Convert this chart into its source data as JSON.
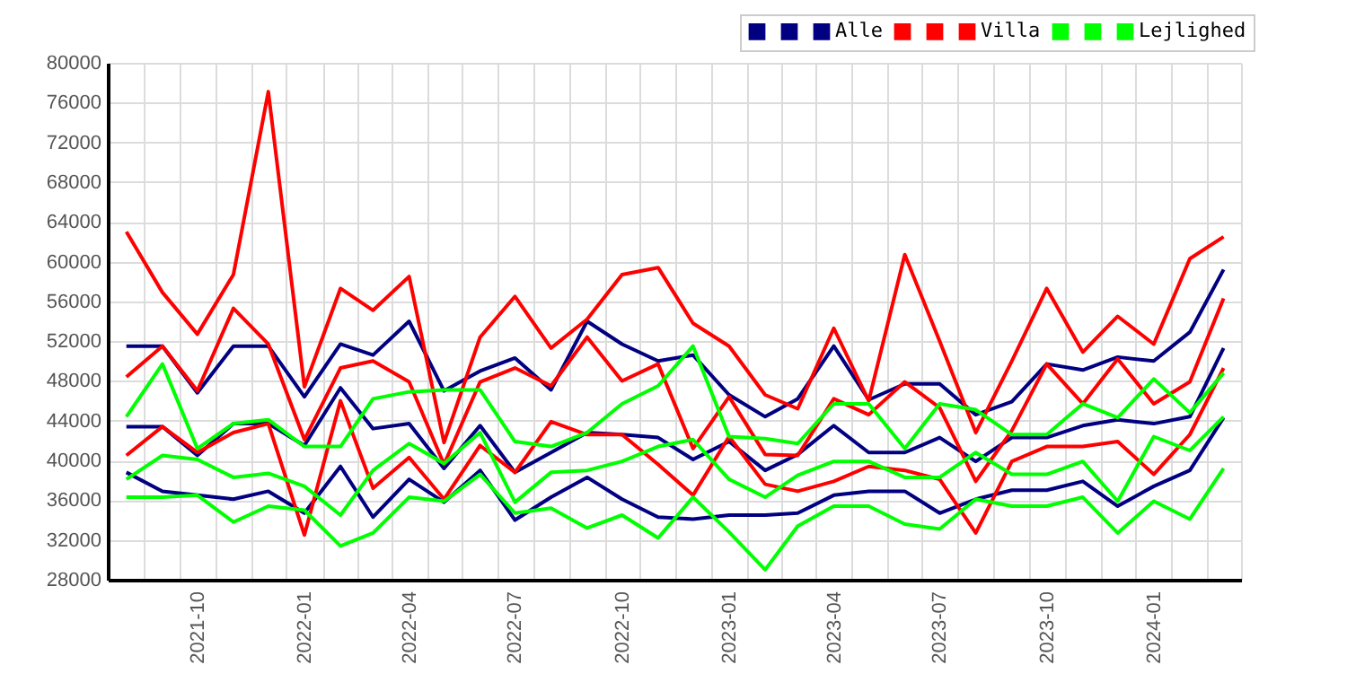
{
  "chart_data": {
    "type": "line",
    "x": [
      "2021-08",
      "2021-09",
      "2021-10",
      "2021-11",
      "2021-12",
      "2022-01",
      "2022-02",
      "2022-03",
      "2022-04",
      "2022-05",
      "2022-06",
      "2022-07",
      "2022-08",
      "2022-09",
      "2022-10",
      "2022-11",
      "2022-12",
      "2023-01",
      "2023-02",
      "2023-03",
      "2023-04",
      "2023-05",
      "2023-06",
      "2023-07",
      "2023-08",
      "2023-09",
      "2023-10",
      "2023-11",
      "2023-12",
      "2024-01",
      "2024-02",
      "2024-03"
    ],
    "series": [
      {
        "color": "#000080",
        "values": [
          51500,
          51500,
          46800,
          51500,
          51500,
          46400,
          51700,
          50600,
          54000,
          47000,
          49000,
          50300,
          47100,
          54000,
          51700,
          50000,
          50600,
          46600,
          44400,
          46200,
          51500,
          46100,
          47700,
          47700,
          44600,
          45900,
          49700,
          49100,
          50400,
          50000,
          52900,
          59200
        ]
      },
      {
        "color": "#000080",
        "values": [
          38800,
          36900,
          36500,
          36100,
          36900,
          34700,
          39400,
          34300,
          38100,
          35800,
          39000,
          34000,
          36300,
          38300,
          36100,
          34300,
          34100,
          34500,
          34500,
          34700,
          36500,
          36900,
          36900,
          34700,
          36100,
          37000,
          37000,
          37900,
          35400,
          37400,
          39000,
          44300
        ]
      },
      {
        "name": "Alle",
        "color": "#000080",
        "values": [
          43400,
          43400,
          40500,
          43700,
          43700,
          41500,
          47300,
          43200,
          43700,
          39200,
          43500,
          38800,
          40800,
          42800,
          42600,
          42300,
          40100,
          41900,
          39000,
          40600,
          43500,
          40800,
          40800,
          42300,
          39900,
          42300,
          42300,
          43500,
          44100,
          43700,
          44400,
          51300
        ]
      },
      {
        "color": "#ff0000",
        "values": [
          63000,
          56900,
          52700,
          58700,
          77100,
          47400,
          57300,
          55100,
          58500,
          41800,
          52400,
          56500,
          51300,
          54200,
          58700,
          59400,
          53800,
          51500,
          46600,
          45200,
          53300,
          46000,
          60700,
          52000,
          42800,
          50000,
          57300,
          50900,
          54500,
          51700,
          60300,
          62500
        ]
      },
      {
        "color": "#ff0000",
        "values": [
          40500,
          43400,
          40800,
          42800,
          43700,
          32500,
          46000,
          37200,
          40300,
          36100,
          41500,
          38800,
          43900,
          42600,
          42600,
          39600,
          36500,
          42400,
          37600,
          36900,
          37900,
          39400,
          39000,
          38100,
          32700,
          39900,
          41400,
          41400,
          41900,
          38600,
          42600,
          49300
        ]
      },
      {
        "name": "Villa",
        "color": "#ff0000",
        "values": [
          48400,
          51500,
          47000,
          55300,
          51700,
          42100,
          49300,
          50000,
          47900,
          39600,
          47900,
          49300,
          47500,
          52400,
          48000,
          49700,
          41200,
          46400,
          40600,
          40500,
          46200,
          44600,
          47900,
          45300,
          37900,
          43000,
          49700,
          45700,
          50200,
          45700,
          47900,
          56300
        ]
      },
      {
        "color": "#00ff00",
        "values": [
          44400,
          49700,
          41200,
          43700,
          44100,
          41400,
          41400,
          46200,
          46900,
          47100,
          47100,
          41900,
          41400,
          42800,
          45700,
          47500,
          51500,
          42400,
          42200,
          41700,
          45700,
          45700,
          41200,
          45700,
          45100,
          42600,
          42600,
          45700,
          44300,
          48200,
          44800,
          48800
        ]
      },
      {
        "color": "#00ff00",
        "values": [
          36300,
          36300,
          36500,
          33800,
          35400,
          35000,
          31400,
          32700,
          36300,
          35900,
          38600,
          34700,
          35200,
          33200,
          34500,
          32200,
          36300,
          32800,
          29000,
          33400,
          35400,
          35400,
          33600,
          33100,
          36100,
          35400,
          35400,
          36300,
          32700,
          35900,
          34100,
          39200
        ]
      },
      {
        "name": "Lejlighed",
        "color": "#00ff00",
        "values": [
          38100,
          40500,
          40100,
          38300,
          38700,
          37400,
          34500,
          39000,
          41700,
          39700,
          42800,
          35800,
          38800,
          39000,
          39900,
          41400,
          42100,
          38100,
          36300,
          38500,
          39900,
          39900,
          38300,
          38300,
          40800,
          38600,
          38600,
          39900,
          35900,
          42400,
          41000,
          44400
        ]
      }
    ],
    "xlim": [
      "2021-07-16",
      "2024-03-16"
    ],
    "xticks": [
      "2021-10",
      "2022-01",
      "2022-04",
      "2022-07",
      "2022-10",
      "2023-01",
      "2023-04",
      "2023-07",
      "2023-10",
      "2024-01"
    ],
    "ylim": [
      28000,
      80000
    ],
    "yticks": [
      28000,
      32000,
      36000,
      40000,
      44000,
      48000,
      52000,
      56000,
      60000,
      64000,
      68000,
      72000,
      76000,
      80000
    ],
    "grid": true,
    "legend": "top right"
  }
}
